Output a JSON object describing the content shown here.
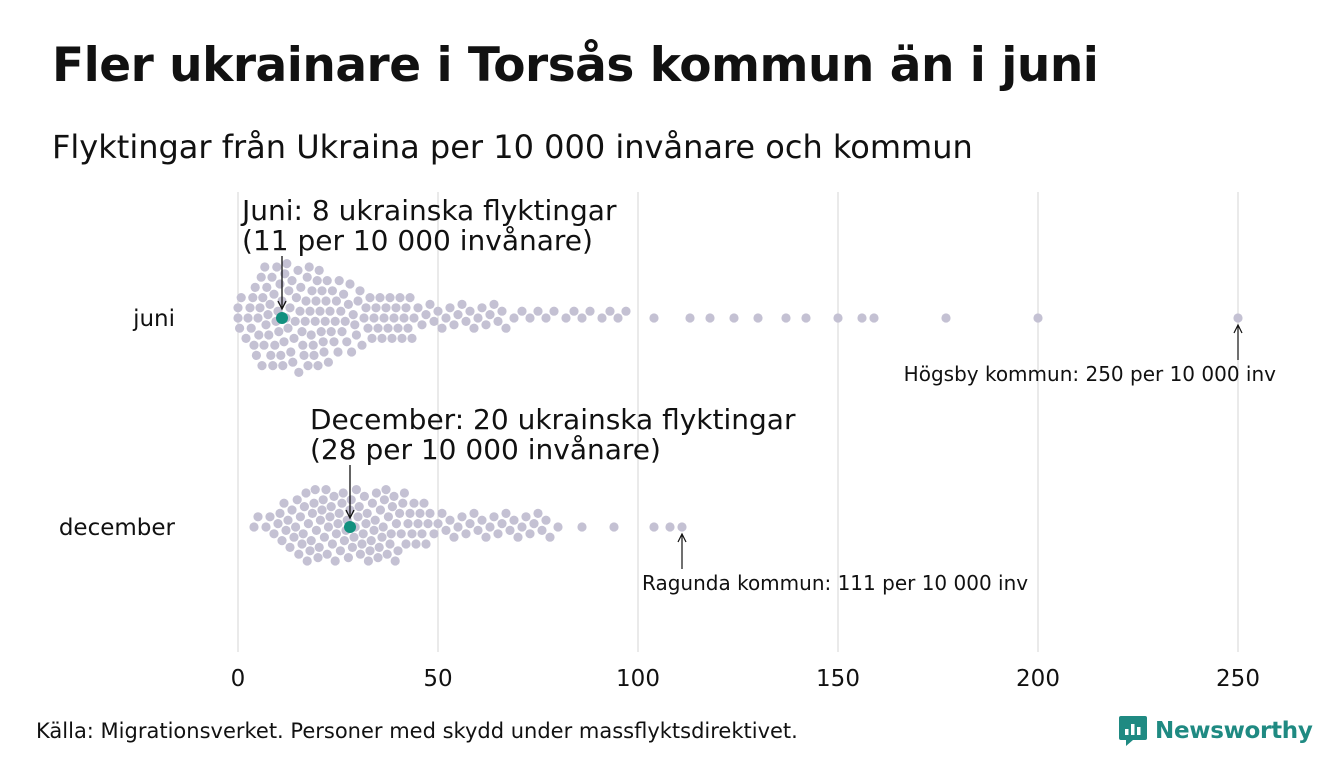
{
  "title": "Fler ukrainare i Torsås kommun än i juni",
  "subtitle": "Flyktingar från Ukraina per 10 000 invånare och kommun",
  "source": "Källa: Migrationsverket. Personer med skydd under massflyktsdirektivet.",
  "logo": {
    "text": "Newsworthy",
    "color": "#1f8a82"
  },
  "chart_data": {
    "type": "scatter",
    "subtype": "beeswarm",
    "xlim": [
      0,
      250
    ],
    "x_ticks": [
      0,
      50,
      100,
      150,
      200,
      250
    ],
    "grid": "vertical",
    "colors": {
      "points": "#c4c1d3",
      "highlight": "#12907f",
      "grid": "#d5d5d5"
    },
    "series": [
      {
        "name": "juni",
        "highlight": {
          "value": 11,
          "label_line1": "Juni:  8 ukrainska flyktingar",
          "label_line2": "(11 per 10 000 invånare)"
        },
        "max_annotation": {
          "value": 250,
          "label": "Högsby kommun: 250 per 10 000 inv"
        },
        "values": [
          0,
          0,
          0.4,
          0.8,
          2,
          2.5,
          3,
          3.3,
          3.7,
          4,
          4.3,
          4.6,
          5,
          5.2,
          5.5,
          5.8,
          6,
          6.2,
          6.5,
          6.7,
          7,
          7.2,
          7.5,
          7.7,
          8,
          8.2,
          8.5,
          8.7,
          9,
          9.2,
          9.5,
          9.7,
          10,
          10.2,
          10.5,
          10.7,
          11,
          11.2,
          11.5,
          11.7,
          12,
          12.2,
          12.5,
          12.7,
          13,
          13.2,
          13.5,
          13.7,
          14,
          14.3,
          14.6,
          15,
          15.2,
          15.5,
          15.7,
          16,
          16.2,
          16.5,
          16.8,
          17,
          17.3,
          17.5,
          17.8,
          18,
          18.3,
          18.5,
          18.8,
          19,
          19.3,
          19.5,
          19.8,
          20,
          20.3,
          20.5,
          20.8,
          21,
          21.3,
          21.5,
          21.8,
          22,
          22.3,
          22.6,
          23,
          23.3,
          23.6,
          24,
          24.3,
          24.6,
          25,
          25.3,
          25.7,
          26,
          26.4,
          26.8,
          27.2,
          27.6,
          28,
          28.4,
          28.8,
          29.2,
          29.6,
          30,
          30.5,
          31,
          31.5,
          32,
          32.5,
          33,
          33.5,
          34,
          34.5,
          35,
          35.5,
          36,
          36.5,
          37,
          37.5,
          38,
          38.5,
          39,
          39.5,
          40,
          40.5,
          41,
          41.5,
          42,
          42.5,
          43,
          43.5,
          44,
          45,
          46,
          47,
          48,
          49,
          50,
          51,
          52,
          53,
          54,
          55,
          56,
          57,
          58,
          59,
          60,
          61,
          62,
          63,
          64,
          65,
          66,
          67,
          69,
          71,
          73,
          75,
          77,
          79,
          82,
          84,
          86,
          88,
          91,
          93,
          95,
          97,
          104,
          113,
          118,
          124,
          130,
          137,
          142,
          150,
          156,
          159,
          177,
          200,
          250
        ]
      },
      {
        "name": "december",
        "highlight": {
          "value": 28,
          "label_line1": "December: 20 ukrainska flyktingar",
          "label_line2": "(28 per 10 000 invånare)"
        },
        "max_annotation": {
          "value": 111,
          "label": "Ragunda kommun: 111 per 10 000 inv"
        },
        "values": [
          4,
          5,
          7,
          8,
          9,
          10,
          10.5,
          11,
          11.5,
          12,
          12.5,
          13,
          13.5,
          14,
          14.4,
          14.8,
          15.2,
          15.6,
          16,
          16.3,
          16.6,
          17,
          17.3,
          17.6,
          18,
          18.3,
          18.6,
          19,
          19.3,
          19.6,
          20,
          20.3,
          20.6,
          21,
          21.3,
          21.6,
          22,
          22.3,
          22.6,
          23,
          23.3,
          23.6,
          24,
          24.3,
          24.6,
          25,
          25.3,
          25.6,
          26,
          26.3,
          26.6,
          27,
          27.3,
          27.6,
          28,
          28.3,
          28.6,
          29,
          29.3,
          29.6,
          30,
          30.3,
          30.6,
          31,
          31.3,
          31.6,
          32,
          32.3,
          32.6,
          33,
          33.3,
          33.6,
          34,
          34.3,
          34.6,
          35,
          35.3,
          35.6,
          36,
          36.3,
          36.6,
          37,
          37.3,
          37.6,
          38,
          38.3,
          38.6,
          39,
          39.3,
          39.6,
          40,
          40.4,
          40.8,
          41.2,
          41.6,
          42,
          42.5,
          43,
          43.5,
          44,
          44.5,
          45,
          45.5,
          46,
          46.5,
          47,
          47.5,
          48,
          49,
          50,
          51,
          52,
          53,
          54,
          55,
          56,
          57,
          58,
          59,
          60,
          61,
          62,
          63,
          64,
          65,
          66,
          67,
          68,
          69,
          70,
          71,
          72,
          73,
          74,
          75,
          76,
          77,
          78,
          80,
          86,
          94,
          104,
          108,
          111
        ]
      }
    ]
  }
}
